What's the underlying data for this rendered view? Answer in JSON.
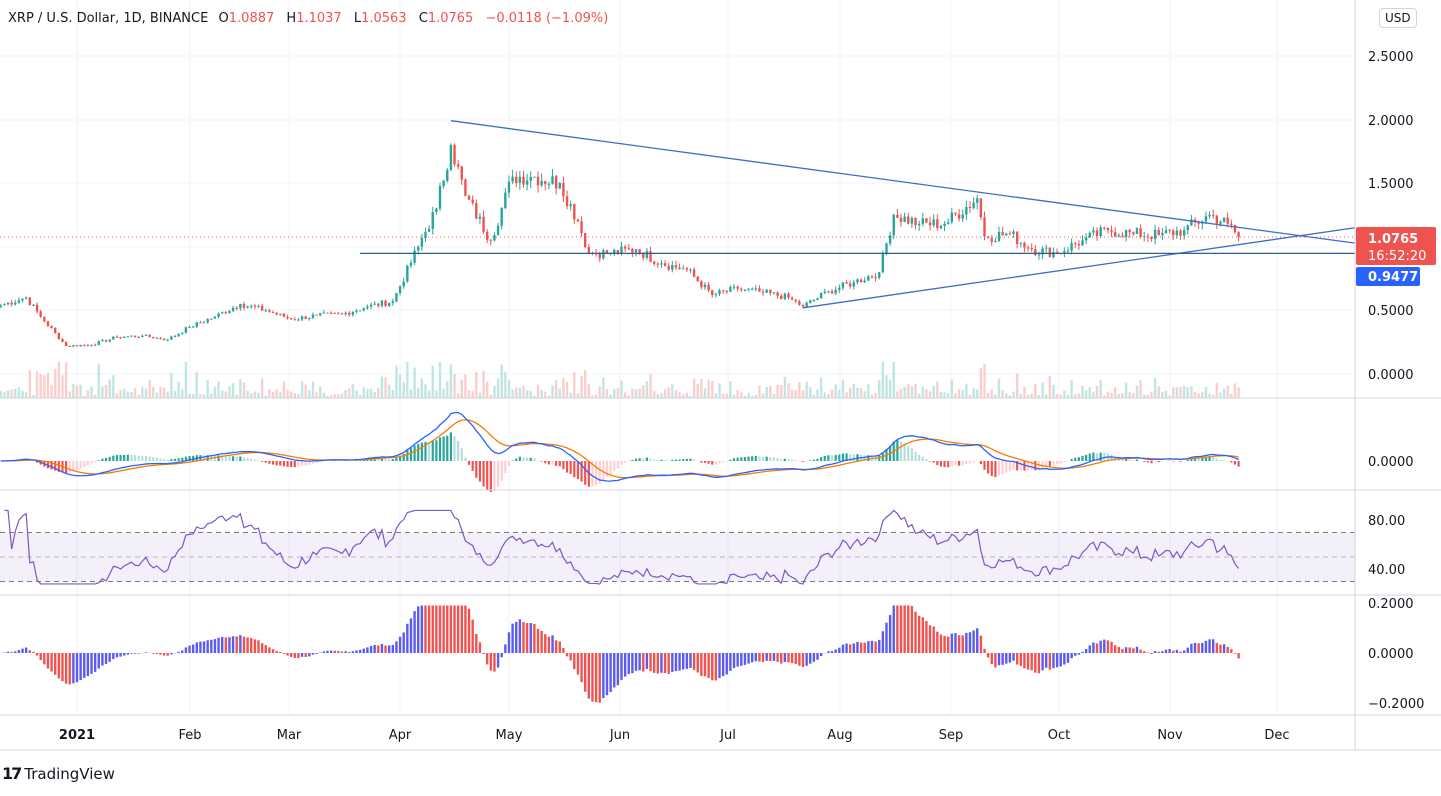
{
  "header": {
    "symbol": "XRP / U.S. Dollar, 1D, BINANCE",
    "open_label": "O",
    "open": "1.0887",
    "high_label": "H",
    "high": "1.1037",
    "low_label": "L",
    "low": "1.0563",
    "close_label": "C",
    "close": "1.0765",
    "change": "−0.0118 (−1.09%)",
    "currency_button": "USD"
  },
  "price_labels": {
    "last_price": "1.0765",
    "countdown": "16:52:20",
    "line_price": "0.9477"
  },
  "colors": {
    "up": "#26a69a",
    "down": "#ef5350",
    "trendline": "#3a6fc4",
    "macd": "#2962ff",
    "signal": "#f57c00",
    "rsi": "#7e57c2",
    "osc_up": "#5b5bf0",
    "osc_down": "#ef5350",
    "last_price_bg": "#ef5350",
    "line_price_bg": "#2962ff"
  },
  "brand": {
    "name": "TradingView"
  },
  "chart_data": [
    {
      "type": "candlestick",
      "title": "XRP / U.S. Dollar, 1D, BINANCE",
      "x_ticks": [
        "2021",
        "Feb",
        "Mar",
        "Apr",
        "May",
        "Jun",
        "Jul",
        "Aug",
        "Sep",
        "Oct",
        "Nov",
        "Dec"
      ],
      "y_ticks": [
        "2.5000",
        "2.0000",
        "1.5000",
        "0.5000",
        "0.0000"
      ],
      "ylim": [
        0,
        2.6
      ],
      "grid": true,
      "approx_closes": [
        [
          "2020-12-11",
          0.54
        ],
        [
          "2020-12-18",
          0.6
        ],
        [
          "2020-12-22",
          0.45
        ],
        [
          "2020-12-29",
          0.22
        ],
        [
          "2021-01-05",
          0.23
        ],
        [
          "2021-01-12",
          0.29
        ],
        [
          "2021-01-19",
          0.3
        ],
        [
          "2021-01-26",
          0.27
        ],
        [
          "2021-02-01",
          0.37
        ],
        [
          "2021-02-08",
          0.45
        ],
        [
          "2021-02-15",
          0.55
        ],
        [
          "2021-02-22",
          0.5
        ],
        [
          "2021-03-01",
          0.43
        ],
        [
          "2021-03-08",
          0.46
        ],
        [
          "2021-03-15",
          0.47
        ],
        [
          "2021-03-22",
          0.53
        ],
        [
          "2021-03-29",
          0.57
        ],
        [
          "2021-04-05",
          1.0
        ],
        [
          "2021-04-10",
          1.3
        ],
        [
          "2021-04-14",
          1.8
        ],
        [
          "2021-04-18",
          1.4
        ],
        [
          "2021-04-25",
          1.05
        ],
        [
          "2021-05-01",
          1.55
        ],
        [
          "2021-05-07",
          1.55
        ],
        [
          "2021-05-14",
          1.5
        ],
        [
          "2021-05-19",
          1.2
        ],
        [
          "2021-05-22",
          0.95
        ],
        [
          "2021-05-28",
          0.95
        ],
        [
          "2021-06-04",
          0.98
        ],
        [
          "2021-06-11",
          0.87
        ],
        [
          "2021-06-18",
          0.82
        ],
        [
          "2021-06-25",
          0.62
        ],
        [
          "2021-07-02",
          0.67
        ],
        [
          "2021-07-09",
          0.64
        ],
        [
          "2021-07-16",
          0.6
        ],
        [
          "2021-07-20",
          0.53
        ],
        [
          "2021-07-27",
          0.65
        ],
        [
          "2021-08-03",
          0.72
        ],
        [
          "2021-08-10",
          0.8
        ],
        [
          "2021-08-14",
          1.25
        ],
        [
          "2021-08-21",
          1.18
        ],
        [
          "2021-08-28",
          1.18
        ],
        [
          "2021-09-06",
          1.38
        ],
        [
          "2021-09-08",
          1.08
        ],
        [
          "2021-09-15",
          1.1
        ],
        [
          "2021-09-21",
          0.98
        ],
        [
          "2021-09-28",
          0.95
        ],
        [
          "2021-10-05",
          1.05
        ],
        [
          "2021-10-12",
          1.13
        ],
        [
          "2021-10-19",
          1.1
        ],
        [
          "2021-10-26",
          1.09
        ],
        [
          "2021-11-02",
          1.13
        ],
        [
          "2021-11-09",
          1.25
        ],
        [
          "2021-11-14",
          1.18
        ],
        [
          "2021-11-17",
          1.0765
        ]
      ],
      "trendlines": [
        {
          "kind": "descending",
          "from": [
            "2021-04-14",
            1.99
          ],
          "to": [
            "2021-09-06",
            1.43
          ]
        },
        {
          "kind": "ascending",
          "from": [
            "2021-07-20",
            0.52
          ],
          "to": [
            "2021-11-01",
            0.95
          ]
        },
        {
          "kind": "horizontal",
          "from_date": "2021-03-20",
          "price": 0.9477
        }
      ]
    },
    {
      "type": "line",
      "pane": "MACD",
      "y_ticks": [
        "0.0000"
      ]
    },
    {
      "type": "line",
      "pane": "RSI",
      "y_ticks": [
        "80.00",
        "40.00"
      ],
      "bands": [
        30,
        50,
        70
      ]
    },
    {
      "type": "bar",
      "pane": "oscillator",
      "y_ticks": [
        "0.2000",
        "0.0000",
        "−0.2000"
      ]
    }
  ]
}
